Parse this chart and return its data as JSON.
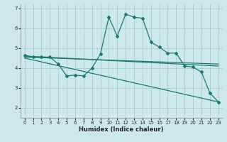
{
  "xlabel": "Humidex (Indice chaleur)",
  "background_color": "#cde8e8",
  "grid_color": "#aacccc",
  "line_color": "#1a7a6e",
  "xlim": [
    -0.5,
    23.5
  ],
  "ylim": [
    1.5,
    7.2
  ],
  "yticks": [
    2,
    3,
    4,
    5,
    6,
    7
  ],
  "xticks": [
    0,
    1,
    2,
    3,
    4,
    5,
    6,
    7,
    8,
    9,
    10,
    11,
    12,
    13,
    14,
    15,
    16,
    17,
    18,
    19,
    20,
    21,
    22,
    23
  ],
  "main_x": [
    0,
    1,
    2,
    3,
    4,
    5,
    6,
    7,
    8,
    9,
    10,
    11,
    12,
    13,
    14,
    15,
    16,
    17,
    18,
    19,
    20,
    21,
    22,
    23
  ],
  "main_y": [
    4.65,
    4.55,
    4.55,
    4.55,
    4.2,
    3.6,
    3.65,
    3.6,
    4.0,
    4.7,
    6.55,
    5.6,
    6.7,
    6.55,
    6.5,
    5.3,
    5.05,
    4.75,
    4.75,
    4.1,
    4.05,
    3.8,
    2.75,
    2.3
  ],
  "trend1_x": [
    0,
    23
  ],
  "trend1_y": [
    4.6,
    4.1
  ],
  "trend2_x": [
    0,
    23
  ],
  "trend2_y": [
    4.55,
    4.2
  ],
  "trend3_x": [
    0,
    23
  ],
  "trend3_y": [
    4.5,
    2.3
  ]
}
